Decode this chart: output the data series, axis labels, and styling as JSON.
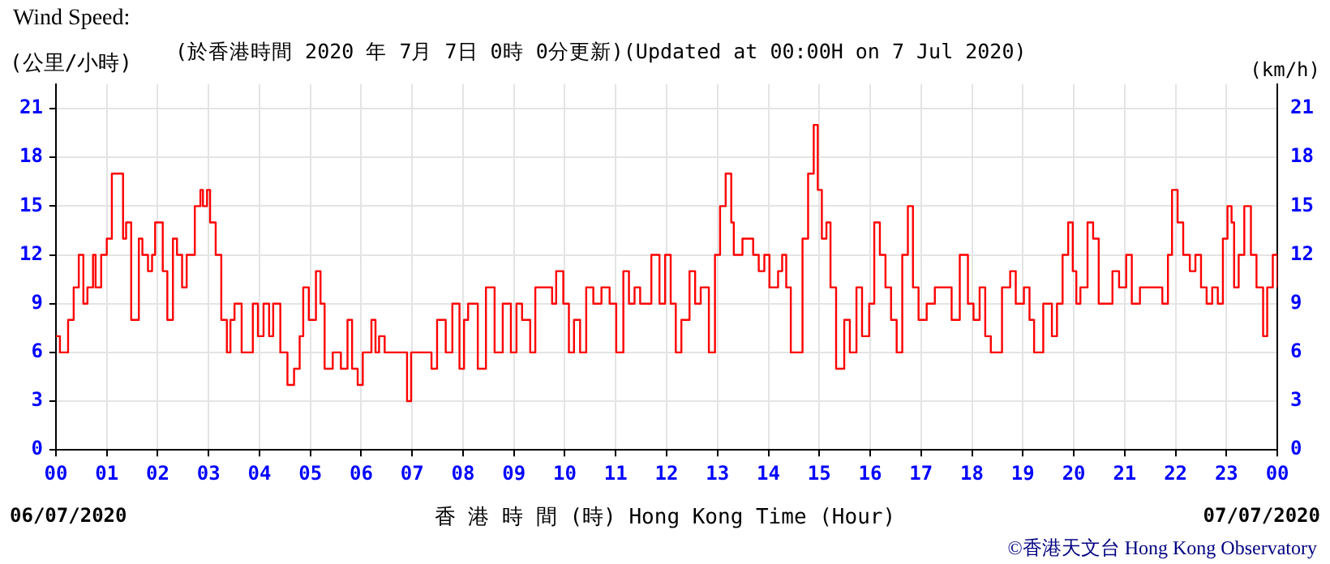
{
  "chart_data": {
    "type": "step",
    "title": "Wind Speed:",
    "subtitle": "(於香港時間 2020 年 7月 7日 0時 0分更新)(Updated at 00:00H on 7 Jul 2020)",
    "ylabel": "(公里/小時)",
    "y2label": "(km/h)",
    "xlabel": "香 港 時 間 (時) Hong Kong Time (Hour)",
    "annotations": [
      "06/07/2020",
      "07/07/2020",
      "©香港天文台 Hong Kong Observatory"
    ],
    "color": "#ff0000",
    "x": [
      0,
      0.08,
      0.24,
      0.35,
      0.45,
      0.54,
      0.62,
      0.73,
      0.78,
      0.89,
      1.0,
      1.1,
      1.2,
      1.32,
      1.38,
      1.48,
      1.56,
      1.63,
      1.7,
      1.81,
      1.89,
      1.95,
      2.03,
      2.1,
      2.19,
      2.3,
      2.38,
      2.48,
      2.57,
      2.68,
      2.73,
      2.84,
      2.89,
      2.97,
      3.03,
      3.14,
      3.25,
      3.36,
      3.43,
      3.51,
      3.65,
      3.76,
      3.87,
      3.97,
      4.08,
      4.19,
      4.27,
      4.41,
      4.55,
      4.68,
      4.79,
      4.86,
      4.97,
      5.11,
      5.2,
      5.28,
      5.44,
      5.6,
      5.73,
      5.82,
      5.93,
      6.03,
      6.2,
      6.28,
      6.35,
      6.46,
      6.79,
      6.9,
      6.98,
      7.33,
      7.38,
      7.49,
      7.66,
      7.79,
      7.93,
      8.02,
      8.1,
      8.29,
      8.45,
      8.62,
      8.78,
      8.94,
      9.05,
      9.16,
      9.32,
      9.42,
      9.64,
      9.75,
      9.83,
      9.97,
      10.08,
      10.18,
      10.3,
      10.42,
      10.56,
      10.72,
      10.88,
      11.01,
      11.15,
      11.26,
      11.37,
      11.48,
      11.7,
      11.86,
      11.97,
      12.08,
      12.18,
      12.29,
      12.45,
      12.56,
      12.67,
      12.83,
      12.95,
      13.05,
      13.16,
      13.27,
      13.32,
      13.49,
      13.7,
      13.81,
      13.92,
      14.02,
      14.19,
      14.27,
      14.35,
      14.44,
      14.51,
      14.67,
      14.78,
      14.89,
      14.97,
      15.05,
      15.14,
      15.22,
      15.33,
      15.4,
      15.49,
      15.6,
      15.73,
      15.84,
      15.98,
      16.08,
      16.19,
      16.3,
      16.41,
      16.52,
      16.63,
      16.74,
      16.84,
      16.95,
      17.11,
      17.27,
      17.49,
      17.6,
      17.76,
      17.92,
      18.03,
      18.15,
      18.26,
      18.37,
      18.48,
      18.59,
      18.75,
      18.86,
      19.02,
      19.13,
      19.22,
      19.29,
      19.4,
      19.51,
      19.57,
      19.67,
      19.78,
      19.89,
      19.98,
      20.05,
      20.13,
      20.27,
      20.38,
      20.49,
      20.65,
      20.76,
      20.89,
      21.03,
      21.14,
      21.3,
      21.63,
      21.74,
      21.85,
      21.93,
      22.04,
      22.15,
      22.28,
      22.39,
      22.5,
      22.61,
      22.72,
      22.83,
      22.93,
      23.02,
      23.1,
      23.15,
      23.24,
      23.35,
      23.48,
      23.59,
      23.72,
      23.8,
      23.91,
      24.0
    ],
    "values": [
      7,
      6,
      8,
      10,
      12,
      9,
      10,
      12,
      10,
      12,
      13,
      17,
      17,
      13,
      14,
      8,
      8,
      13,
      12,
      11,
      12,
      14,
      14,
      11,
      8,
      13,
      12,
      10,
      12,
      12,
      15,
      16,
      15,
      16,
      14,
      12,
      8,
      6,
      8,
      9,
      6,
      6,
      9,
      7,
      9,
      7,
      9,
      6,
      4,
      5,
      7,
      10,
      8,
      11,
      9,
      5,
      6,
      5,
      8,
      5,
      4,
      6,
      8,
      6,
      7,
      6,
      6,
      3,
      6,
      6,
      5,
      8,
      6,
      9,
      5,
      8,
      9,
      5,
      10,
      6,
      9,
      6,
      9,
      8,
      6,
      10,
      10,
      9,
      11,
      9,
      6,
      8,
      6,
      10,
      9,
      10,
      9,
      6,
      11,
      9,
      10,
      9,
      12,
      9,
      12,
      9,
      6,
      8,
      11,
      9,
      10,
      6,
      12,
      15,
      17,
      14,
      12,
      13,
      12,
      11,
      12,
      10,
      11,
      12,
      10,
      6,
      6,
      13,
      17,
      20,
      16,
      13,
      14,
      10,
      5,
      5,
      8,
      6,
      10,
      7,
      9,
      14,
      12,
      10,
      8,
      6,
      12,
      15,
      10,
      8,
      9,
      10,
      10,
      8,
      12,
      9,
      8,
      10,
      7,
      6,
      6,
      10,
      11,
      9,
      10,
      8,
      6,
      6,
      9,
      9,
      7,
      9,
      12,
      14,
      11,
      9,
      10,
      14,
      13,
      9,
      9,
      11,
      10,
      12,
      9,
      10,
      10,
      9,
      12,
      16,
      14,
      12,
      11,
      12,
      10,
      9,
      10,
      9,
      13,
      15,
      14,
      10,
      12,
      15,
      12,
      10,
      7,
      10,
      12,
      10
    ],
    "xlim": [
      0,
      24
    ],
    "xticks": [
      {
        "value": 0,
        "label": "00"
      },
      {
        "value": 1,
        "label": "01"
      },
      {
        "value": 2,
        "label": "02"
      },
      {
        "value": 3,
        "label": "03"
      },
      {
        "value": 4,
        "label": "04"
      },
      {
        "value": 5,
        "label": "05"
      },
      {
        "value": 6,
        "label": "06"
      },
      {
        "value": 7,
        "label": "07"
      },
      {
        "value": 8,
        "label": "08"
      },
      {
        "value": 9,
        "label": "09"
      },
      {
        "value": 10,
        "label": "10"
      },
      {
        "value": 11,
        "label": "11"
      },
      {
        "value": 12,
        "label": "12"
      },
      {
        "value": 13,
        "label": "13"
      },
      {
        "value": 14,
        "label": "14"
      },
      {
        "value": 15,
        "label": "15"
      },
      {
        "value": 16,
        "label": "16"
      },
      {
        "value": 17,
        "label": "17"
      },
      {
        "value": 18,
        "label": "18"
      },
      {
        "value": 19,
        "label": "19"
      },
      {
        "value": 20,
        "label": "20"
      },
      {
        "value": 21,
        "label": "21"
      },
      {
        "value": 22,
        "label": "22"
      },
      {
        "value": 23,
        "label": "23"
      },
      {
        "value": 24,
        "label": "00"
      }
    ],
    "ylim": [
      0,
      22.5
    ],
    "yticks": [
      0,
      3,
      6,
      9,
      12,
      15,
      18,
      21
    ],
    "y2lim": [
      0,
      22.5
    ],
    "y2ticks": [
      0,
      3,
      6,
      9,
      12,
      15,
      18,
      21
    ],
    "grid": true,
    "legend": false,
    "marker": "none",
    "line_style": "solid"
  }
}
